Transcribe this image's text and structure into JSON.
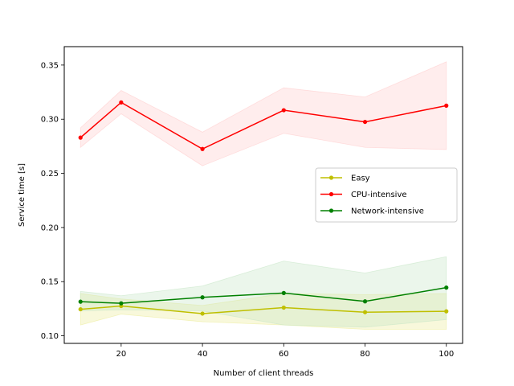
{
  "chart_data": {
    "type": "line",
    "title": "",
    "xlabel": "Number of client threads",
    "ylabel": "Service time [s]",
    "xlim": [
      6,
      104
    ],
    "ylim": [
      0.093,
      0.367
    ],
    "xticks": [
      20,
      40,
      60,
      80,
      100
    ],
    "xtick_labels": [
      "20",
      "40",
      "60",
      "80",
      "100"
    ],
    "yticks": [
      0.1,
      0.15,
      0.2,
      0.25,
      0.3,
      0.35
    ],
    "ytick_labels": [
      "0.10",
      "0.15",
      "0.20",
      "0.25",
      "0.30",
      "0.35"
    ],
    "grid": false,
    "legend_position": "center-right",
    "x": [
      10,
      20,
      40,
      60,
      80,
      100
    ],
    "series": [
      {
        "name": "Easy",
        "color": "#bfbf00",
        "band_color": "#ecec99",
        "values": [
          0.1245,
          0.1275,
          0.1205,
          0.126,
          0.1218,
          0.1226
        ],
        "lower": [
          0.11,
          0.12,
          0.113,
          0.11,
          0.106,
          0.106
        ],
        "upper": [
          0.139,
          0.134,
          0.128,
          0.139,
          0.138,
          0.139
        ]
      },
      {
        "name": "CPU-intensive",
        "color": "#ff0000",
        "band_color": "#ffcccc",
        "values": [
          0.283,
          0.3155,
          0.2725,
          0.3083,
          0.2975,
          0.3125
        ],
        "lower": [
          0.274,
          0.305,
          0.257,
          0.287,
          0.274,
          0.272
        ],
        "upper": [
          0.292,
          0.3265,
          0.288,
          0.329,
          0.3205,
          0.353
        ]
      },
      {
        "name": "Network-intensive",
        "color": "#008000",
        "band_color": "#c6e6c6",
        "values": [
          0.1315,
          0.13,
          0.1355,
          0.1395,
          0.1318,
          0.1445
        ],
        "lower": [
          0.123,
          0.124,
          0.123,
          0.11,
          0.108,
          0.115
        ],
        "upper": [
          0.141,
          0.137,
          0.146,
          0.169,
          0.158,
          0.173
        ]
      }
    ]
  }
}
